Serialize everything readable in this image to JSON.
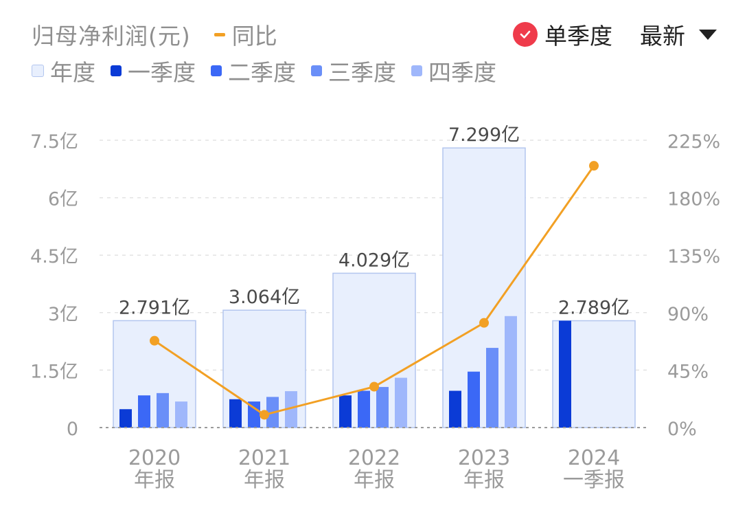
{
  "header": {
    "title": "归母净利润(元)",
    "yoy_label": "同比",
    "single_quarter_label": "单季度",
    "latest_label": "最新",
    "check_icon": "check-circle-icon",
    "dropdown_icon": "caret-down-icon"
  },
  "legend": [
    {
      "label": "年度",
      "color": "#e8effd"
    },
    {
      "label": "一季度",
      "color": "#0b3bd6"
    },
    {
      "label": "二季度",
      "color": "#3b68f6"
    },
    {
      "label": "三季度",
      "color": "#6a8ff8"
    },
    {
      "label": "四季度",
      "color": "#9fb7fb"
    }
  ],
  "chart_data": {
    "type": "bar",
    "categories": [
      [
        "2020",
        "年报"
      ],
      [
        "2021",
        "年报"
      ],
      [
        "2022",
        "年报"
      ],
      [
        "2023",
        "年报"
      ],
      [
        "2024",
        "一季报"
      ]
    ],
    "annual": {
      "name": "年度",
      "values": [
        2.791,
        3.064,
        4.029,
        7.299,
        2.789
      ],
      "labels": [
        "2.791亿",
        "3.064亿",
        "4.029亿",
        "7.299亿",
        "2.789亿"
      ]
    },
    "quarters": [
      {
        "name": "一季度",
        "values": [
          0.48,
          0.74,
          0.84,
          0.96,
          2.789
        ]
      },
      {
        "name": "二季度",
        "values": [
          0.84,
          0.68,
          0.96,
          1.46,
          null
        ]
      },
      {
        "name": "三季度",
        "values": [
          0.9,
          0.8,
          1.06,
          2.08,
          null
        ]
      },
      {
        "name": "四季度",
        "values": [
          0.68,
          0.95,
          1.3,
          2.91,
          null
        ]
      }
    ],
    "yoy": {
      "name": "同比",
      "values": [
        68,
        10,
        32,
        82,
        205
      ],
      "color": "#f2a024"
    },
    "y_left": {
      "ticks": [
        "0",
        "1.5亿",
        "3亿",
        "4.5亿",
        "6亿",
        "7.5亿"
      ],
      "range": [
        0,
        7.5
      ]
    },
    "y_right": {
      "ticks": [
        "0%",
        "45%",
        "90%",
        "135%",
        "180%",
        "225%"
      ],
      "range": [
        0,
        225
      ]
    },
    "colors": {
      "annual_fill": "#e8effd",
      "annual_stroke": "#b3c6ef",
      "grid": "#e3e3e3",
      "zero_line": "#9a9a9a",
      "tick_text": "#9a9a9a",
      "label_text": "#4a4a4a"
    }
  }
}
